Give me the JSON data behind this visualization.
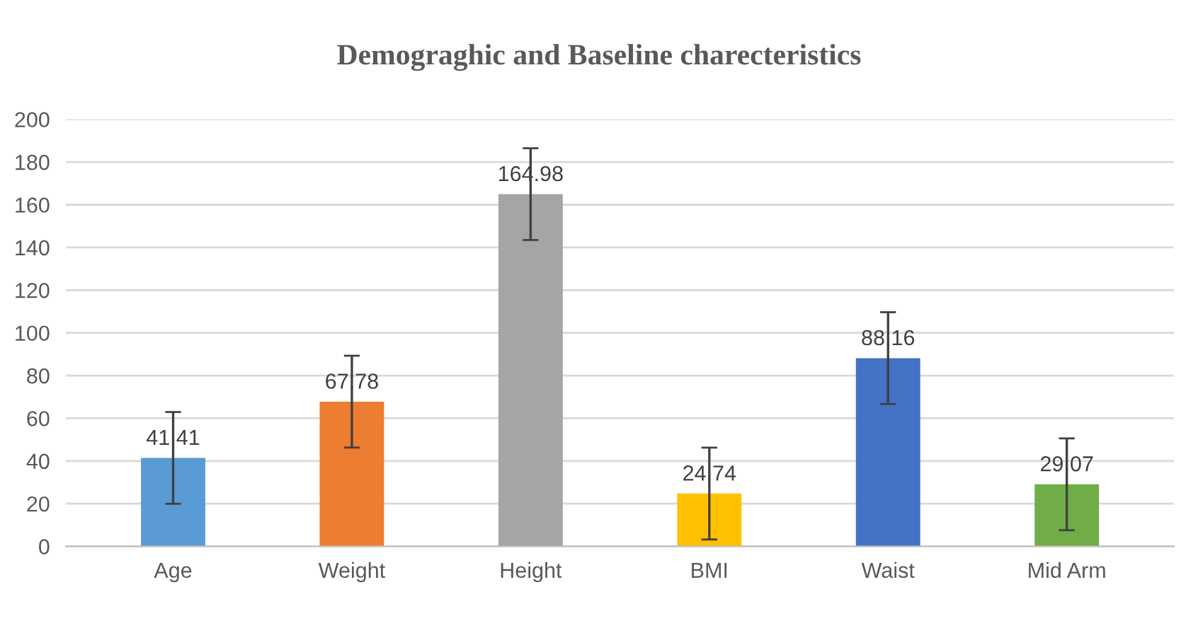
{
  "chart_data": {
    "type": "bar",
    "title": "Demograghic and Baseline charecteristics",
    "categories": [
      "Age",
      "Weight",
      "Height",
      "BMI",
      "Waist",
      "Mid Arm"
    ],
    "values": [
      41.41,
      67.78,
      164.98,
      24.74,
      88.16,
      29.07
    ],
    "errors": [
      21.5,
      21.5,
      21.5,
      21.5,
      21.5,
      21.5
    ],
    "colors": [
      "#5b9bd5",
      "#ed7d31",
      "#a5a5a5",
      "#ffc000",
      "#4472c4",
      "#70ad47"
    ],
    "ylim": [
      0,
      200
    ],
    "yticks": [
      0,
      20,
      40,
      60,
      80,
      100,
      120,
      140,
      160,
      180,
      200
    ],
    "grid": "y",
    "data_labels": true
  }
}
